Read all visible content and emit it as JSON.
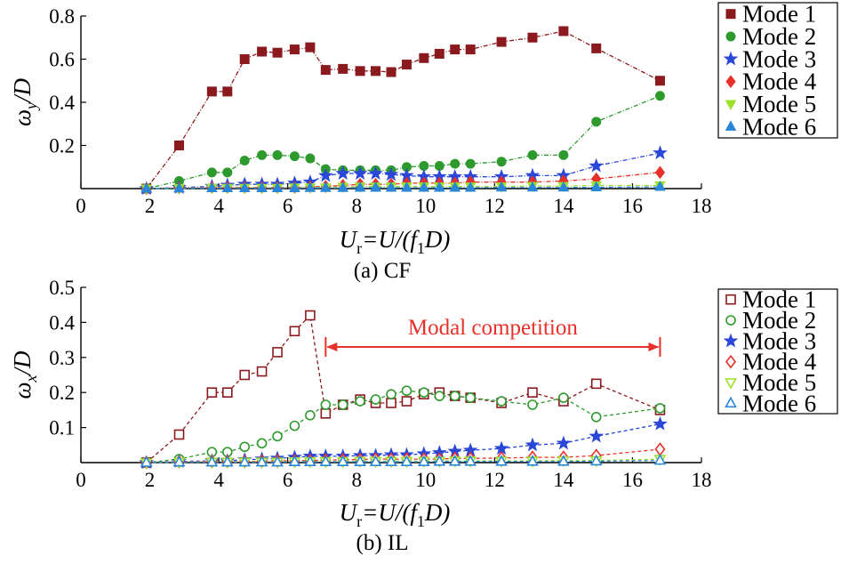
{
  "chart_data": [
    {
      "type": "line",
      "caption": "(a) CF",
      "ylabel_symbol": "ω",
      "ylabel_sub": "y",
      "ylabel_rest": "/D",
      "xlabel_parts": [
        "U",
        "r",
        "=U/(f",
        "1",
        "D)"
      ],
      "xlim": [
        0,
        18
      ],
      "ylim": [
        0,
        0.8
      ],
      "xticks": [
        "0",
        "2",
        "4",
        "6",
        "8",
        "10",
        "12",
        "14",
        "16",
        "18"
      ],
      "yticks": [
        "0.2",
        "0.4",
        "0.6",
        "0.8"
      ],
      "legend_position": "right",
      "x": [
        1.9,
        2.85,
        3.8,
        4.25,
        4.75,
        5.25,
        5.7,
        6.2,
        6.65,
        7.1,
        7.6,
        8.1,
        8.55,
        9.0,
        9.45,
        9.95,
        10.4,
        10.85,
        11.3,
        12.2,
        13.1,
        14.0,
        14.95,
        16.8
      ],
      "series": [
        {
          "name": "Mode 1",
          "color": "#8b1a1e",
          "marker": "square",
          "filled": true,
          "values": [
            0.0,
            0.2,
            0.45,
            0.45,
            0.6,
            0.635,
            0.63,
            0.645,
            0.655,
            0.55,
            0.555,
            0.545,
            0.545,
            0.54,
            0.575,
            0.605,
            0.625,
            0.645,
            0.645,
            0.68,
            0.7,
            0.73,
            0.65,
            0.5
          ]
        },
        {
          "name": "Mode 2",
          "color": "#2e9a2e",
          "marker": "circle",
          "filled": true,
          "values": [
            0.0,
            0.035,
            0.075,
            0.075,
            0.13,
            0.155,
            0.155,
            0.15,
            0.14,
            0.09,
            0.085,
            0.085,
            0.085,
            0.085,
            0.1,
            0.105,
            0.105,
            0.115,
            0.115,
            0.125,
            0.155,
            0.155,
            0.31,
            0.43
          ]
        },
        {
          "name": "Mode 3",
          "color": "#2a47d8",
          "marker": "star",
          "filled": true,
          "values": [
            0.0,
            0.005,
            0.01,
            0.015,
            0.02,
            0.02,
            0.02,
            0.025,
            0.03,
            0.06,
            0.07,
            0.07,
            0.07,
            0.065,
            0.06,
            0.055,
            0.055,
            0.055,
            0.055,
            0.055,
            0.06,
            0.06,
            0.105,
            0.165
          ]
        },
        {
          "name": "Mode 4",
          "color": "#e8302a",
          "marker": "diamond",
          "filled": true,
          "values": [
            0.0,
            0.003,
            0.005,
            0.005,
            0.005,
            0.005,
            0.005,
            0.005,
            0.008,
            0.01,
            0.015,
            0.02,
            0.02,
            0.02,
            0.025,
            0.025,
            0.025,
            0.025,
            0.03,
            0.03,
            0.03,
            0.035,
            0.045,
            0.075
          ]
        },
        {
          "name": "Mode 5",
          "color": "#9ee02a",
          "marker": "triangle-down",
          "filled": true,
          "values": [
            0.0,
            0.002,
            0.003,
            0.003,
            0.003,
            0.003,
            0.003,
            0.005,
            0.005,
            0.005,
            0.008,
            0.01,
            0.01,
            0.01,
            0.01,
            0.01,
            0.01,
            0.01,
            0.01,
            0.01,
            0.012,
            0.012,
            0.015,
            0.015
          ]
        },
        {
          "name": "Mode 6",
          "color": "#2a86d8",
          "marker": "triangle-up",
          "filled": true,
          "values": [
            0.0,
            0.001,
            0.002,
            0.002,
            0.002,
            0.002,
            0.002,
            0.002,
            0.003,
            0.003,
            0.003,
            0.004,
            0.004,
            0.004,
            0.004,
            0.004,
            0.004,
            0.004,
            0.004,
            0.005,
            0.005,
            0.005,
            0.006,
            0.008
          ]
        }
      ]
    },
    {
      "type": "line",
      "caption": "(b) IL",
      "ylabel_symbol": "ω",
      "ylabel_sub": "x",
      "ylabel_rest": "/D",
      "xlabel_parts": [
        "U",
        "r",
        "=U/(f",
        "1",
        "D)"
      ],
      "xlim": [
        0,
        18
      ],
      "ylim": [
        0,
        0.5
      ],
      "xticks": [
        "0",
        "2",
        "4",
        "6",
        "8",
        "10",
        "12",
        "14",
        "16",
        "18"
      ],
      "yticks": [
        "0.1",
        "0.2",
        "0.3",
        "0.4",
        "0.5"
      ],
      "legend_position": "right",
      "annotation": {
        "text": "Modal competition",
        "x_from": 7.1,
        "x_to": 16.8,
        "y": 0.33,
        "color": "#e8302a"
      },
      "x": [
        1.9,
        2.85,
        3.8,
        4.25,
        4.75,
        5.25,
        5.7,
        6.2,
        6.65,
        7.1,
        7.6,
        8.1,
        8.55,
        9.0,
        9.45,
        9.95,
        10.4,
        10.85,
        11.3,
        12.2,
        13.1,
        14.0,
        14.95,
        16.8
      ],
      "series": [
        {
          "name": "Mode 1",
          "color": "#8b1a1e",
          "marker": "square",
          "filled": false,
          "values": [
            0.0,
            0.08,
            0.2,
            0.2,
            0.25,
            0.26,
            0.315,
            0.375,
            0.42,
            0.14,
            0.165,
            0.18,
            0.17,
            0.17,
            0.175,
            0.195,
            0.2,
            0.19,
            0.185,
            0.17,
            0.2,
            0.175,
            0.225,
            0.15
          ]
        },
        {
          "name": "Mode 2",
          "color": "#2e9a2e",
          "marker": "circle",
          "filled": false,
          "values": [
            0.0,
            0.01,
            0.03,
            0.03,
            0.045,
            0.055,
            0.075,
            0.105,
            0.135,
            0.165,
            0.165,
            0.175,
            0.18,
            0.195,
            0.205,
            0.2,
            0.19,
            0.19,
            0.185,
            0.175,
            0.165,
            0.185,
            0.13,
            0.155
          ]
        },
        {
          "name": "Mode 3",
          "color": "#2a47d8",
          "marker": "star",
          "filled": true,
          "values": [
            0.0,
            0.003,
            0.005,
            0.005,
            0.008,
            0.01,
            0.012,
            0.015,
            0.018,
            0.018,
            0.018,
            0.02,
            0.02,
            0.022,
            0.022,
            0.025,
            0.028,
            0.032,
            0.035,
            0.04,
            0.05,
            0.055,
            0.075,
            0.11
          ]
        },
        {
          "name": "Mode 4",
          "color": "#e8302a",
          "marker": "diamond",
          "filled": false,
          "values": [
            0.0,
            0.002,
            0.003,
            0.003,
            0.003,
            0.004,
            0.005,
            0.005,
            0.006,
            0.007,
            0.008,
            0.009,
            0.01,
            0.01,
            0.01,
            0.01,
            0.01,
            0.012,
            0.012,
            0.013,
            0.015,
            0.015,
            0.02,
            0.038
          ]
        },
        {
          "name": "Mode 5",
          "color": "#9ee02a",
          "marker": "triangle-down",
          "filled": false,
          "values": [
            0.0,
            0.001,
            0.002,
            0.002,
            0.002,
            0.002,
            0.002,
            0.003,
            0.003,
            0.003,
            0.003,
            0.004,
            0.004,
            0.004,
            0.004,
            0.004,
            0.004,
            0.005,
            0.005,
            0.005,
            0.005,
            0.006,
            0.006,
            0.01
          ]
        },
        {
          "name": "Mode 6",
          "color": "#2a86d8",
          "marker": "triangle-up",
          "filled": false,
          "values": [
            0.0,
            0.001,
            0.001,
            0.001,
            0.001,
            0.001,
            0.001,
            0.002,
            0.002,
            0.002,
            0.002,
            0.002,
            0.002,
            0.002,
            0.002,
            0.002,
            0.003,
            0.003,
            0.003,
            0.003,
            0.003,
            0.003,
            0.004,
            0.006
          ]
        }
      ]
    }
  ]
}
